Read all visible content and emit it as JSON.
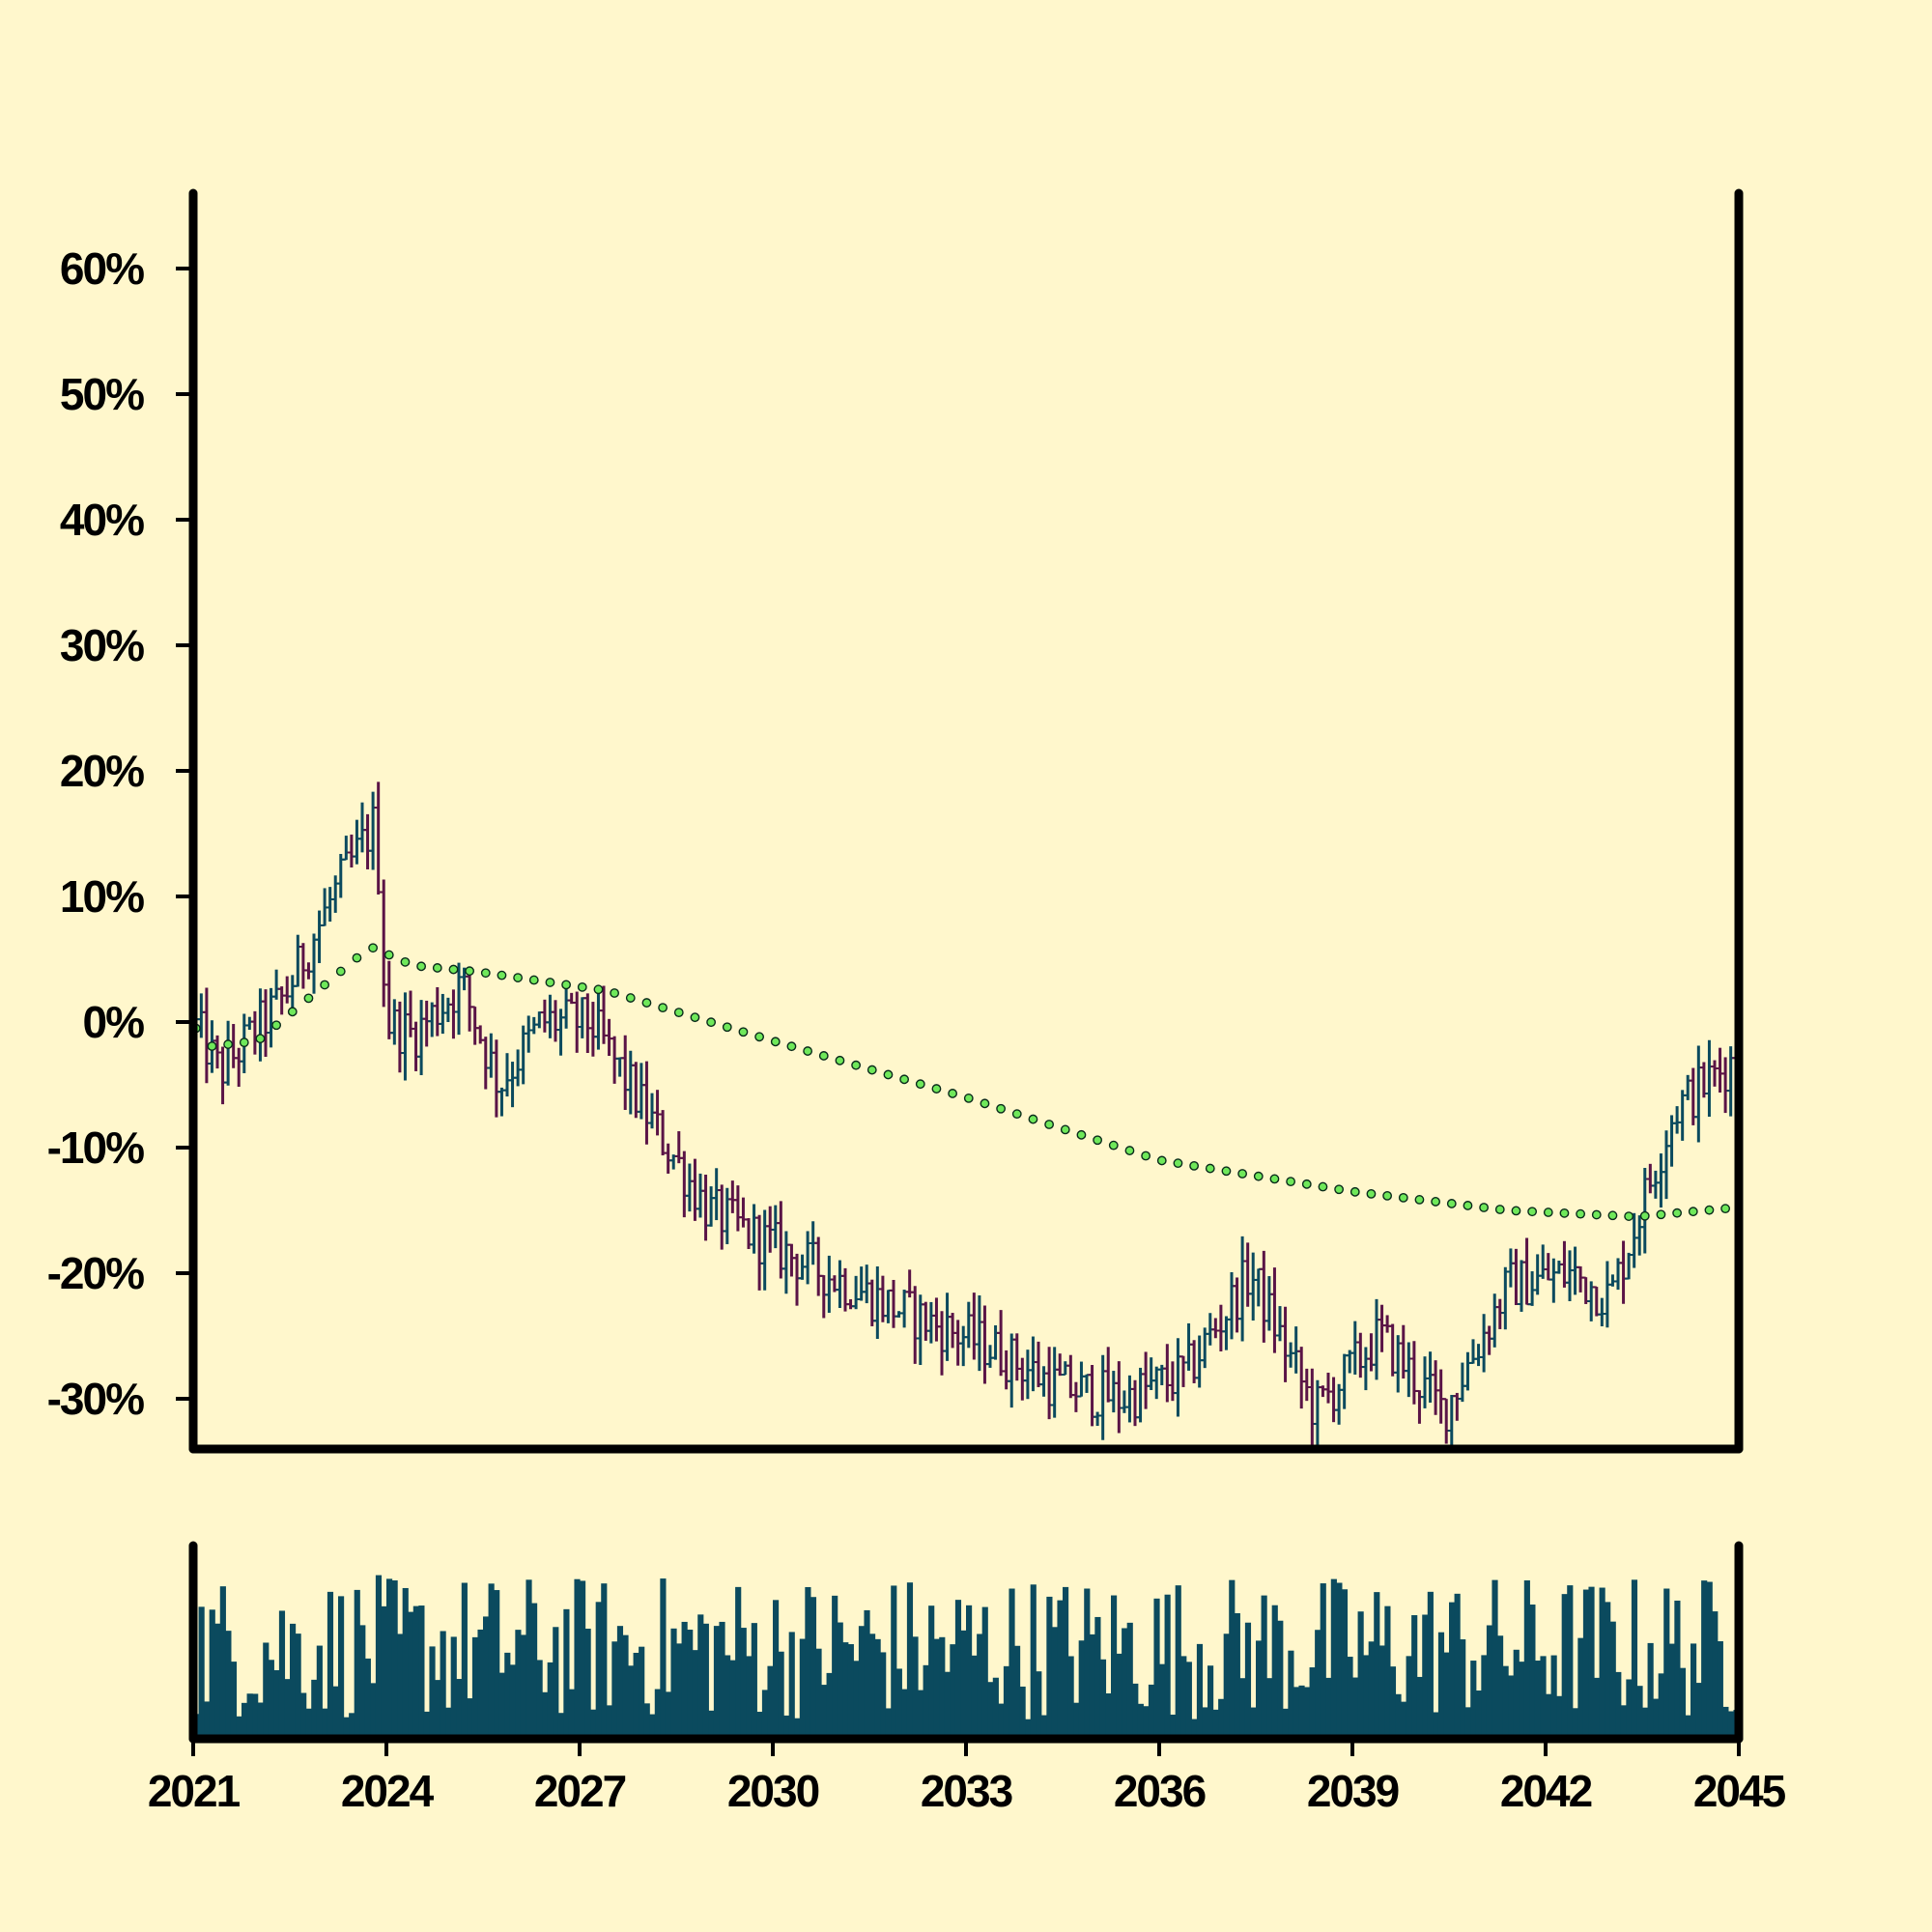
{
  "chart_data": {
    "type": "ohlc",
    "subtype": "monthly OHLC price chart with volume bars and moving-average line",
    "title": "",
    "xlabel": "",
    "ylabel": "",
    "x_range": [
      "2021-01",
      "2045-01"
    ],
    "ylim": [
      -34,
      66
    ],
    "y_ticks": [
      "60%",
      "50%",
      "40%",
      "30%",
      "20%",
      "10%",
      "0%",
      "-10%",
      "-20%",
      "-30%"
    ],
    "y_tick_values": [
      60,
      50,
      40,
      30,
      20,
      10,
      0,
      -10,
      -20,
      -30
    ],
    "x_ticks": [
      "2021",
      "2024",
      "2027",
      "2030",
      "2033",
      "2036",
      "2039",
      "2042",
      "2045"
    ],
    "x_tick_values": [
      2021,
      2024,
      2027,
      2030,
      2033,
      2036,
      2039,
      2042,
      2045
    ],
    "grid": false,
    "colors": {
      "background": "#fff7cc",
      "up": "#0b4a5e",
      "down": "#5a1446",
      "ma_line": "#6fe85a",
      "volume": "#0b4a5e",
      "axis": "#000000"
    },
    "trend_anchors": [
      {
        "date": "2021-01",
        "value": 0
      },
      {
        "date": "2021-06",
        "value": -4
      },
      {
        "date": "2022-06",
        "value": 2
      },
      {
        "date": "2023-03",
        "value": 10
      },
      {
        "date": "2023-11",
        "value": 16
      },
      {
        "date": "2024-01",
        "value": 0
      },
      {
        "date": "2024-06",
        "value": -1
      },
      {
        "date": "2025-03",
        "value": 3
      },
      {
        "date": "2025-10",
        "value": -5
      },
      {
        "date": "2026-06",
        "value": 0
      },
      {
        "date": "2027-03",
        "value": 0
      },
      {
        "date": "2028-01",
        "value": -7
      },
      {
        "date": "2029-01",
        "value": -15
      },
      {
        "date": "2030-06",
        "value": -19
      },
      {
        "date": "2032-01",
        "value": -23
      },
      {
        "date": "2033-06",
        "value": -26
      },
      {
        "date": "2034-06",
        "value": -29
      },
      {
        "date": "2035-06",
        "value": -30
      },
      {
        "date": "2036-06",
        "value": -28
      },
      {
        "date": "2037-06",
        "value": -20
      },
      {
        "date": "2038-06",
        "value": -31
      },
      {
        "date": "2039-06",
        "value": -25
      },
      {
        "date": "2040-06",
        "value": -31
      },
      {
        "date": "2041-06",
        "value": -21
      },
      {
        "date": "2042-06",
        "value": -20
      },
      {
        "date": "2043-01",
        "value": -22
      },
      {
        "date": "2044-01",
        "value": -7
      },
      {
        "date": "2044-12",
        "value": -3
      }
    ],
    "moving_average_anchors": [
      {
        "date": "2021-01",
        "value": 0
      },
      {
        "date": "2021-03",
        "value": -2
      },
      {
        "date": "2022-01",
        "value": -1.5
      },
      {
        "date": "2022-08",
        "value": 1
      },
      {
        "date": "2023-10",
        "value": 6
      },
      {
        "date": "2024-06",
        "value": 4.5
      },
      {
        "date": "2025-06",
        "value": 4
      },
      {
        "date": "2027-06",
        "value": 2.5
      },
      {
        "date": "2030-01",
        "value": -1.5
      },
      {
        "date": "2033-01",
        "value": -6
      },
      {
        "date": "2036-01",
        "value": -11
      },
      {
        "date": "2039-01",
        "value": -13.5
      },
      {
        "date": "2041-06",
        "value": -15
      },
      {
        "date": "2043-06",
        "value": -15.5
      },
      {
        "date": "2044-12",
        "value": -14.8
      }
    ]
  }
}
